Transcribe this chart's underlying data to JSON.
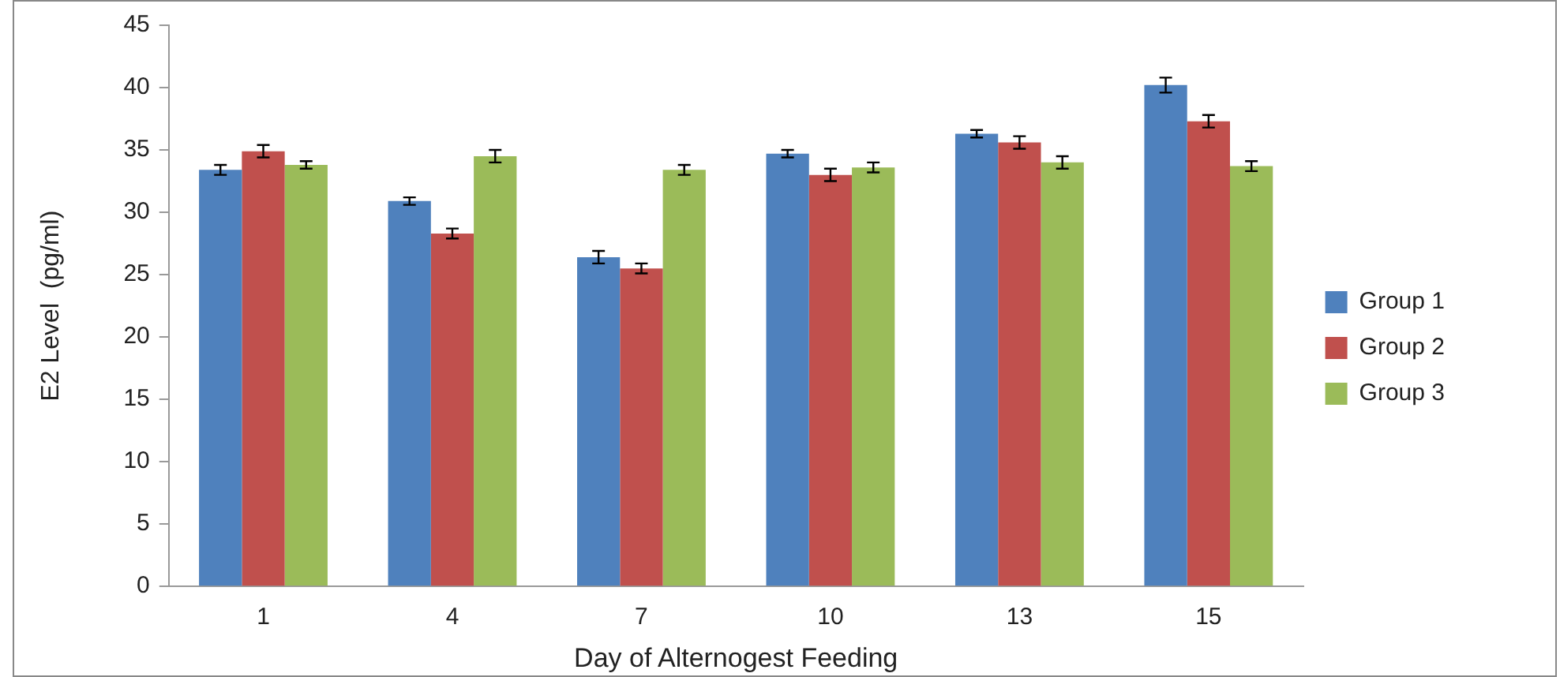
{
  "chart_data": {
    "type": "bar",
    "xlabel": "Day of Alternogest Feeding",
    "ylabel": "E2 Level  (pg/ml)",
    "categories": [
      "1",
      "4",
      "7",
      "10",
      "13",
      "15"
    ],
    "series": [
      {
        "name": "Group 1",
        "color": "#4f81bd",
        "values": [
          33.4,
          30.9,
          26.4,
          34.7,
          36.3,
          40.2
        ],
        "errors": [
          0.4,
          0.3,
          0.5,
          0.3,
          0.3,
          0.6
        ]
      },
      {
        "name": "Group 2",
        "color": "#c0504d",
        "values": [
          34.9,
          28.3,
          25.5,
          33.0,
          35.6,
          37.3
        ],
        "errors": [
          0.5,
          0.4,
          0.4,
          0.5,
          0.5,
          0.5
        ]
      },
      {
        "name": "Group 3",
        "color": "#9bbb59",
        "values": [
          33.8,
          34.5,
          33.4,
          33.6,
          34.0,
          33.7
        ],
        "errors": [
          0.3,
          0.5,
          0.4,
          0.4,
          0.5,
          0.4
        ]
      }
    ],
    "ylim": [
      0,
      45
    ],
    "yticks": [
      0,
      5,
      10,
      15,
      20,
      25,
      30,
      35,
      40,
      45
    ],
    "grid": false,
    "legend": "right"
  }
}
